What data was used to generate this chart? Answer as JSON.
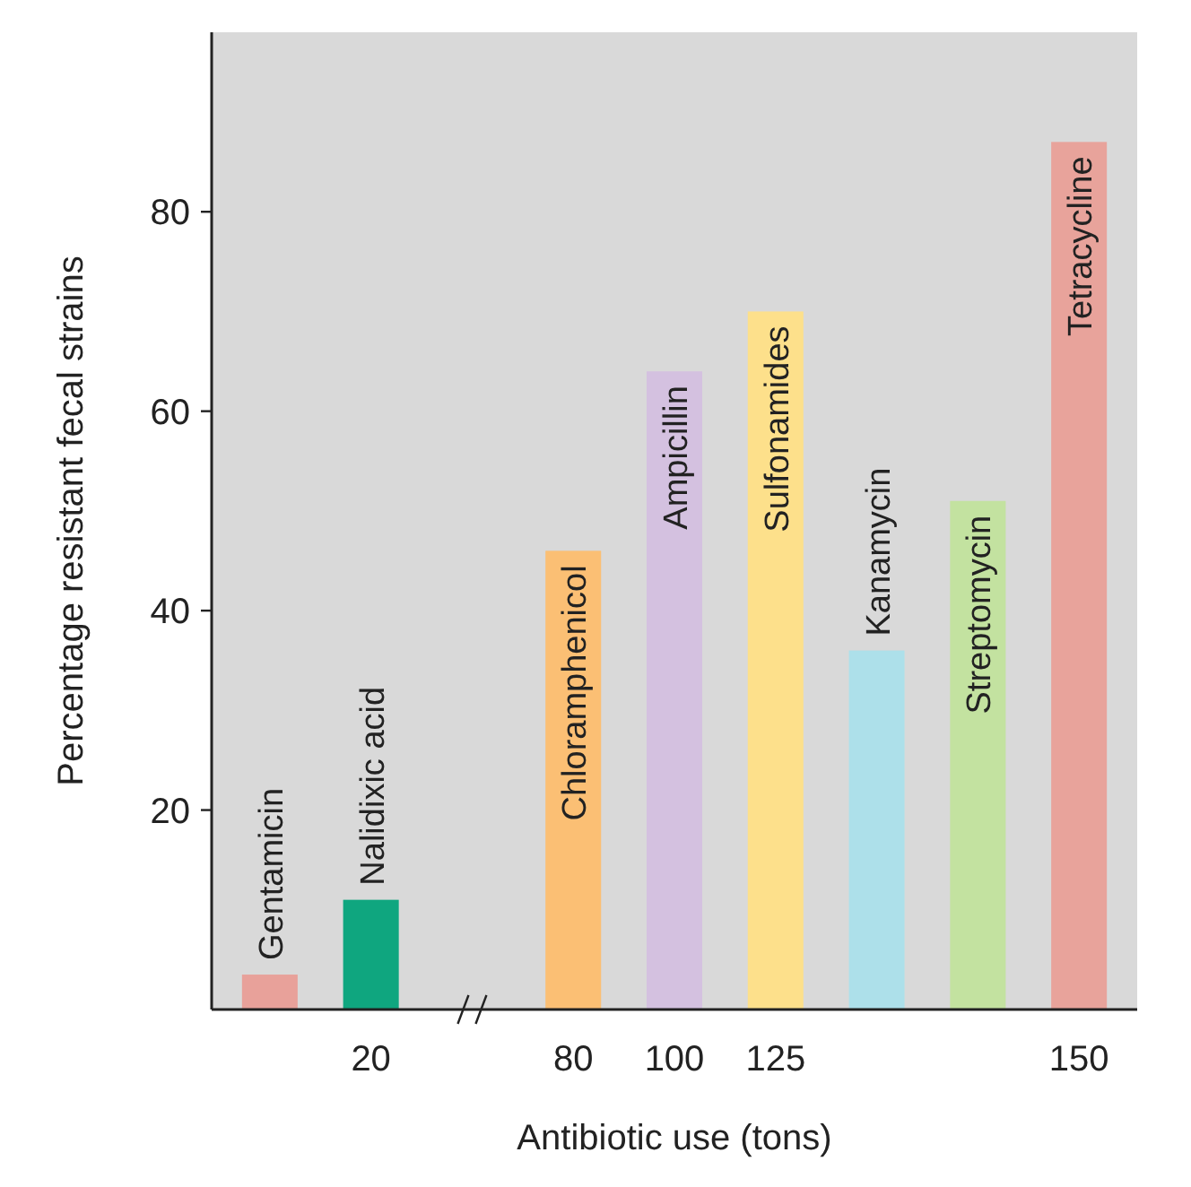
{
  "chart_data": {
    "type": "bar",
    "xlabel": "Antibiotic use (tons)",
    "ylabel": "Percentage resistant fecal strains",
    "categories": [
      "Gentamicin",
      "Nalidixic acid",
      null,
      "Chloramphenicol",
      "Ampicillin",
      "Sulfonamides",
      "Kanamycin",
      "Streptomycin",
      "Tetracycline"
    ],
    "values": [
      3.5,
      11,
      null,
      46,
      64,
      70,
      36,
      51,
      87
    ],
    "colors": [
      "#e8a19a",
      "#0fa67f",
      null,
      "#fbbf74",
      "#d4c1e0",
      "#fde08b",
      "#ade0ea",
      "#c3e2a0",
      "#e8a39b"
    ],
    "ylim": [
      0,
      98
    ],
    "yticks": [
      20,
      40,
      60,
      80
    ],
    "grid": false,
    "annotations": [
      "20",
      "80",
      "100",
      "125",
      "150"
    ]
  }
}
